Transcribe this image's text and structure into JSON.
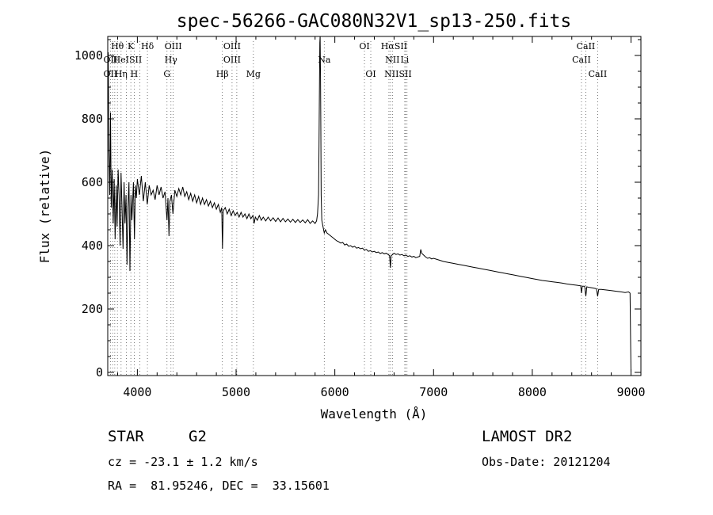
{
  "title": "spec-56266-GAC080N32V1_sp13-250.fits",
  "info": {
    "class_label": "STAR",
    "subclass": "G2",
    "survey": "LAMOST DR2",
    "cz": "cz = -23.1 ± 1.2 km/s",
    "obs_date": "Obs-Date: 20121204",
    "coords": "RA =  81.95246, DEC =  33.15601"
  },
  "chart_data": {
    "type": "line",
    "title": "spec-56266-GAC080N32V1_sp13-250.fits",
    "xlabel": "Wavelength (Å)",
    "ylabel": "Flux (relative)",
    "xlim": [
      3700,
      9100
    ],
    "ylim": [
      -10,
      1060
    ],
    "xticks": [
      4000,
      5000,
      6000,
      7000,
      8000,
      9000
    ],
    "yticks": [
      0,
      200,
      400,
      600,
      800,
      1000
    ],
    "grid": false,
    "series": [
      {
        "points": [
          [
            3700,
            960
          ],
          [
            3705,
            1010
          ],
          [
            3712,
            700
          ],
          [
            3720,
            560
          ],
          [
            3728,
            820
          ],
          [
            3735,
            520
          ],
          [
            3745,
            640
          ],
          [
            3755,
            470
          ],
          [
            3765,
            610
          ],
          [
            3775,
            420
          ],
          [
            3785,
            590
          ],
          [
            3795,
            460
          ],
          [
            3805,
            640
          ],
          [
            3815,
            560
          ],
          [
            3825,
            400
          ],
          [
            3835,
            630
          ],
          [
            3845,
            510
          ],
          [
            3855,
            390
          ],
          [
            3865,
            600
          ],
          [
            3875,
            470
          ],
          [
            3885,
            560
          ],
          [
            3895,
            340
          ],
          [
            3905,
            520
          ],
          [
            3915,
            600
          ],
          [
            3925,
            320
          ],
          [
            3935,
            560
          ],
          [
            3945,
            480
          ],
          [
            3960,
            600
          ],
          [
            3970,
            420
          ],
          [
            3980,
            590
          ],
          [
            3990,
            550
          ],
          [
            4000,
            610
          ],
          [
            4020,
            560
          ],
          [
            4040,
            620
          ],
          [
            4060,
            540
          ],
          [
            4080,
            600
          ],
          [
            4100,
            530
          ],
          [
            4120,
            590
          ],
          [
            4140,
            560
          ],
          [
            4160,
            575
          ],
          [
            4180,
            545
          ],
          [
            4200,
            590
          ],
          [
            4220,
            560
          ],
          [
            4240,
            585
          ],
          [
            4260,
            550
          ],
          [
            4280,
            570
          ],
          [
            4300,
            480
          ],
          [
            4310,
            550
          ],
          [
            4320,
            430
          ],
          [
            4330,
            540
          ],
          [
            4345,
            560
          ],
          [
            4360,
            500
          ],
          [
            4380,
            575
          ],
          [
            4400,
            555
          ],
          [
            4420,
            580
          ],
          [
            4440,
            560
          ],
          [
            4460,
            585
          ],
          [
            4480,
            555
          ],
          [
            4500,
            570
          ],
          [
            4520,
            545
          ],
          [
            4540,
            565
          ],
          [
            4560,
            540
          ],
          [
            4580,
            560
          ],
          [
            4600,
            535
          ],
          [
            4620,
            555
          ],
          [
            4640,
            530
          ],
          [
            4660,
            550
          ],
          [
            4680,
            530
          ],
          [
            4700,
            545
          ],
          [
            4720,
            525
          ],
          [
            4740,
            540
          ],
          [
            4760,
            520
          ],
          [
            4780,
            535
          ],
          [
            4800,
            515
          ],
          [
            4820,
            530
          ],
          [
            4840,
            505
          ],
          [
            4855,
            520
          ],
          [
            4862,
            390
          ],
          [
            4870,
            510
          ],
          [
            4890,
            520
          ],
          [
            4910,
            500
          ],
          [
            4930,
            515
          ],
          [
            4950,
            495
          ],
          [
            4970,
            510
          ],
          [
            4990,
            495
          ],
          [
            5010,
            505
          ],
          [
            5030,
            490
          ],
          [
            5050,
            505
          ],
          [
            5070,
            490
          ],
          [
            5090,
            500
          ],
          [
            5110,
            485
          ],
          [
            5130,
            500
          ],
          [
            5150,
            485
          ],
          [
            5170,
            495
          ],
          [
            5183,
            470
          ],
          [
            5195,
            490
          ],
          [
            5215,
            480
          ],
          [
            5235,
            495
          ],
          [
            5255,
            480
          ],
          [
            5275,
            490
          ],
          [
            5300,
            478
          ],
          [
            5325,
            490
          ],
          [
            5350,
            478
          ],
          [
            5375,
            488
          ],
          [
            5400,
            476
          ],
          [
            5425,
            487
          ],
          [
            5450,
            475
          ],
          [
            5475,
            486
          ],
          [
            5500,
            475
          ],
          [
            5525,
            484
          ],
          [
            5550,
            474
          ],
          [
            5575,
            483
          ],
          [
            5600,
            473
          ],
          [
            5625,
            482
          ],
          [
            5650,
            473
          ],
          [
            5675,
            481
          ],
          [
            5700,
            472
          ],
          [
            5725,
            482
          ],
          [
            5750,
            470
          ],
          [
            5775,
            478
          ],
          [
            5800,
            470
          ],
          [
            5815,
            478
          ],
          [
            5825,
            500
          ],
          [
            5835,
            560
          ],
          [
            5840,
            720
          ],
          [
            5845,
            920
          ],
          [
            5848,
            1040
          ],
          [
            5851,
            1060
          ],
          [
            5855,
            930
          ],
          [
            5858,
            760
          ],
          [
            5862,
            560
          ],
          [
            5868,
            480
          ],
          [
            5880,
            460
          ],
          [
            5893,
            440
          ],
          [
            5905,
            450
          ],
          [
            5920,
            440
          ],
          [
            5940,
            435
          ],
          [
            5960,
            430
          ],
          [
            5980,
            425
          ],
          [
            6000,
            420
          ],
          [
            6020,
            415
          ],
          [
            6040,
            412
          ],
          [
            6060,
            408
          ],
          [
            6080,
            410
          ],
          [
            6100,
            402
          ],
          [
            6120,
            405
          ],
          [
            6140,
            398
          ],
          [
            6160,
            400
          ],
          [
            6180,
            395
          ],
          [
            6200,
            398
          ],
          [
            6220,
            392
          ],
          [
            6240,
            394
          ],
          [
            6260,
            390
          ],
          [
            6280,
            392
          ],
          [
            6300,
            386
          ],
          [
            6320,
            388
          ],
          [
            6340,
            382
          ],
          [
            6360,
            384
          ],
          [
            6380,
            380
          ],
          [
            6400,
            382
          ],
          [
            6420,
            378
          ],
          [
            6440,
            380
          ],
          [
            6460,
            375
          ],
          [
            6480,
            378
          ],
          [
            6500,
            374
          ],
          [
            6520,
            376
          ],
          [
            6540,
            372
          ],
          [
            6555,
            368
          ],
          [
            6563,
            330
          ],
          [
            6570,
            368
          ],
          [
            6585,
            372
          ],
          [
            6600,
            376
          ],
          [
            6620,
            372
          ],
          [
            6640,
            374
          ],
          [
            6660,
            370
          ],
          [
            6680,
            372
          ],
          [
            6700,
            368
          ],
          [
            6720,
            370
          ],
          [
            6740,
            366
          ],
          [
            6760,
            368
          ],
          [
            6780,
            364
          ],
          [
            6800,
            366
          ],
          [
            6820,
            362
          ],
          [
            6840,
            364
          ],
          [
            6860,
            366
          ],
          [
            6870,
            388
          ],
          [
            6880,
            376
          ],
          [
            6900,
            370
          ],
          [
            6920,
            364
          ],
          [
            6940,
            360
          ],
          [
            6960,
            362
          ],
          [
            6980,
            358
          ],
          [
            7000,
            360
          ],
          [
            7050,
            355
          ],
          [
            7100,
            350
          ],
          [
            7150,
            347
          ],
          [
            7200,
            344
          ],
          [
            7250,
            341
          ],
          [
            7300,
            338
          ],
          [
            7350,
            335
          ],
          [
            7400,
            332
          ],
          [
            7450,
            329
          ],
          [
            7500,
            326
          ],
          [
            7550,
            323
          ],
          [
            7600,
            320
          ],
          [
            7650,
            317
          ],
          [
            7700,
            314
          ],
          [
            7750,
            311
          ],
          [
            7800,
            308
          ],
          [
            7850,
            305
          ],
          [
            7900,
            302
          ],
          [
            7950,
            299
          ],
          [
            8000,
            296
          ],
          [
            8050,
            293
          ],
          [
            8100,
            290
          ],
          [
            8150,
            288
          ],
          [
            8200,
            286
          ],
          [
            8250,
            284
          ],
          [
            8300,
            282
          ],
          [
            8350,
            279
          ],
          [
            8400,
            277
          ],
          [
            8450,
            275
          ],
          [
            8490,
            273
          ],
          [
            8498,
            250
          ],
          [
            8506,
            272
          ],
          [
            8530,
            272
          ],
          [
            8542,
            240
          ],
          [
            8552,
            270
          ],
          [
            8580,
            268
          ],
          [
            8620,
            266
          ],
          [
            8650,
            264
          ],
          [
            8662,
            240
          ],
          [
            8672,
            262
          ],
          [
            8700,
            262
          ],
          [
            8750,
            260
          ],
          [
            8800,
            258
          ],
          [
            8850,
            256
          ],
          [
            8900,
            254
          ],
          [
            8940,
            252
          ],
          [
            8975,
            254
          ],
          [
            8990,
            250
          ],
          [
            8995,
            120
          ],
          [
            9000,
            0
          ]
        ]
      }
    ],
    "annotations": [
      {
        "label": "Hθ",
        "x": 3798,
        "row": 1
      },
      {
        "label": "K",
        "x": 3934,
        "row": 1
      },
      {
        "label": "Hδ",
        "x": 4102,
        "row": 1
      },
      {
        "label": "OIII",
        "x": 4363,
        "row": 1
      },
      {
        "label": "OIII",
        "x": 4959,
        "row": 1
      },
      {
        "label": "OI",
        "x": 6300,
        "row": 1
      },
      {
        "label": "HαSII",
        "x": 6600,
        "row": 1
      },
      {
        "label": "CaII",
        "x": 8542,
        "row": 1
      },
      {
        "label": "OII",
        "x": 3727,
        "row": 2
      },
      {
        "label": "HeISII",
        "x": 3900,
        "row": 2
      },
      {
        "label": "Hγ",
        "x": 4340,
        "row": 2
      },
      {
        "label": "OIII",
        "x": 4959,
        "row": 2
      },
      {
        "label": "Na",
        "x": 5893,
        "row": 2
      },
      {
        "label": "NII",
        "x": 6583,
        "row": 2
      },
      {
        "label": "Li",
        "x": 6708,
        "row": 2
      },
      {
        "label": "CaII",
        "x": 8498,
        "row": 2
      },
      {
        "label": "OII",
        "x": 3727,
        "row": 3
      },
      {
        "label": "Hη",
        "x": 3835,
        "row": 3
      },
      {
        "label": "H",
        "x": 3968,
        "row": 3
      },
      {
        "label": "G",
        "x": 4300,
        "row": 3
      },
      {
        "label": "Hβ",
        "x": 4861,
        "row": 3
      },
      {
        "label": "Mg",
        "x": 5175,
        "row": 3
      },
      {
        "label": "OI",
        "x": 6364,
        "row": 3
      },
      {
        "label": "NIISII",
        "x": 6640,
        "row": 3
      },
      {
        "label": "CaII",
        "x": 8662,
        "row": 3
      }
    ],
    "reference_lines": [
      3727,
      3750,
      3771,
      3798,
      3835,
      3889,
      3934,
      3968,
      4026,
      4102,
      4300,
      4340,
      4363,
      4861,
      4959,
      5007,
      5175,
      5893,
      6300,
      6364,
      6548,
      6563,
      6583,
      6708,
      6716,
      6731,
      8498,
      8542,
      8662
    ]
  }
}
